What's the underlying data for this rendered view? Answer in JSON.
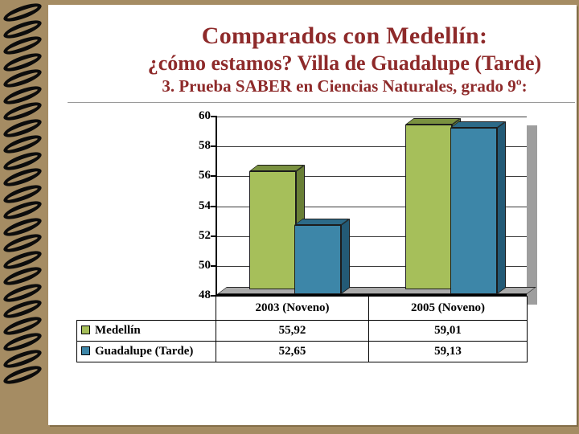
{
  "slide": {
    "title": "Comparados con Medellín:",
    "subtitle": "¿cómo estamos? Villa de Guadalupe (Tarde)",
    "heading": "3. Prueba SABER en Ciencias Naturales, grado 9º:"
  },
  "chart_data": {
    "type": "bar",
    "style": "3d-clustered-column",
    "title": "",
    "categories": [
      "2003 (Noveno)",
      "2005 (Noveno)"
    ],
    "series": [
      {
        "name": "Medellín",
        "values": [
          55.92,
          59.01
        ],
        "value_labels": [
          "55,92",
          "59,01"
        ],
        "color": "#a6bf5a",
        "color_top": "#7a9140",
        "color_side": "#697f36"
      },
      {
        "name": "Guadalupe (Tarde)",
        "values": [
          52.65,
          59.13
        ],
        "value_labels": [
          "52,65",
          "59,13"
        ],
        "color": "#3d86a8",
        "color_top": "#2c6a88",
        "color_side": "#235a76"
      }
    ],
    "ylim": [
      48,
      60
    ],
    "yticks": [
      "60",
      "58",
      "56",
      "54",
      "52",
      "50",
      "48"
    ],
    "grid": true,
    "legend_position": "table-left"
  },
  "colors": {
    "background": "#a58c63",
    "page": "#ffffff",
    "heading": "#8e2a2a",
    "floor": "#ababab",
    "shadow": "#9e9e9e"
  }
}
